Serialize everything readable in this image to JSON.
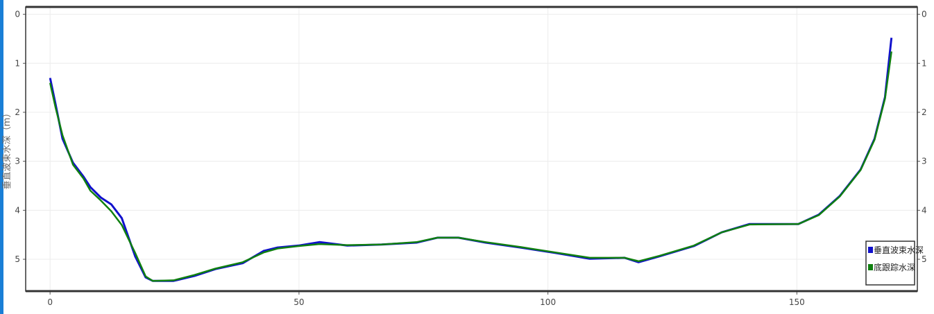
{
  "chart_data": {
    "type": "line",
    "title": "",
    "xlabel": "",
    "ylabel": "垂直波束水深（m）",
    "xlim": [
      -4.9,
      174.2
    ],
    "ylim": [
      5.65,
      -0.15
    ],
    "y_inverted": true,
    "xticks": [
      0,
      50,
      100,
      150
    ],
    "yticks": [
      0,
      1,
      2,
      3,
      4,
      5
    ],
    "y2ticks": [
      0,
      1,
      2,
      3,
      4,
      5
    ],
    "grid": true,
    "legend_position": "bottom-right",
    "series": [
      {
        "name": "垂直波束水深",
        "color": "#1010cc",
        "x": [
          0,
          1.1,
          2.5,
          4.6,
          6.7,
          8.1,
          10.2,
          12.3,
          14.4,
          17.1,
          19.2,
          20.6,
          24.8,
          29,
          33.2,
          38.7,
          42.9,
          45.7,
          49.9,
          54.1,
          59.7,
          66.6,
          73.6,
          77.8,
          82,
          87.5,
          94.5,
          101.5,
          108.4,
          115.4,
          118.2,
          122.4,
          129.3,
          134.9,
          140.5,
          150.3,
          154.4,
          158.6,
          162.8,
          165.6,
          167.7,
          169
        ],
        "y": [
          1.3,
          1.83,
          2.54,
          3.03,
          3.31,
          3.53,
          3.74,
          3.88,
          4.16,
          4.94,
          5.37,
          5.44,
          5.44,
          5.34,
          5.2,
          5.08,
          4.83,
          4.76,
          4.72,
          4.65,
          4.72,
          4.7,
          4.66,
          4.56,
          4.56,
          4.66,
          4.76,
          4.87,
          4.99,
          4.97,
          5.06,
          4.94,
          4.73,
          4.45,
          4.28,
          4.28,
          4.09,
          3.71,
          3.17,
          2.54,
          1.69,
          0.48
        ]
      },
      {
        "name": "底跟踪水深",
        "color": "#108010",
        "x": [
          0,
          1.1,
          2.5,
          4.6,
          6.7,
          8.1,
          10.2,
          12.3,
          14.4,
          17.1,
          19.2,
          20.6,
          24.8,
          29,
          33.2,
          38.7,
          42.9,
          45.7,
          49.9,
          54.1,
          59.7,
          66.6,
          73.6,
          77.8,
          82,
          87.5,
          94.5,
          101.5,
          108.4,
          115.4,
          118.2,
          122.4,
          129.3,
          134.9,
          140.5,
          150.3,
          154.4,
          158.6,
          162.8,
          165.6,
          167.7,
          169
        ],
        "y": [
          1.4,
          1.9,
          2.47,
          3.07,
          3.35,
          3.6,
          3.8,
          4.02,
          4.3,
          4.87,
          5.35,
          5.44,
          5.43,
          5.32,
          5.19,
          5.06,
          4.86,
          4.78,
          4.73,
          4.69,
          4.71,
          4.7,
          4.65,
          4.56,
          4.56,
          4.65,
          4.75,
          4.86,
          4.97,
          4.97,
          5.04,
          4.93,
          4.72,
          4.45,
          4.29,
          4.28,
          4.1,
          3.72,
          3.18,
          2.56,
          1.72,
          0.76
        ]
      }
    ]
  }
}
